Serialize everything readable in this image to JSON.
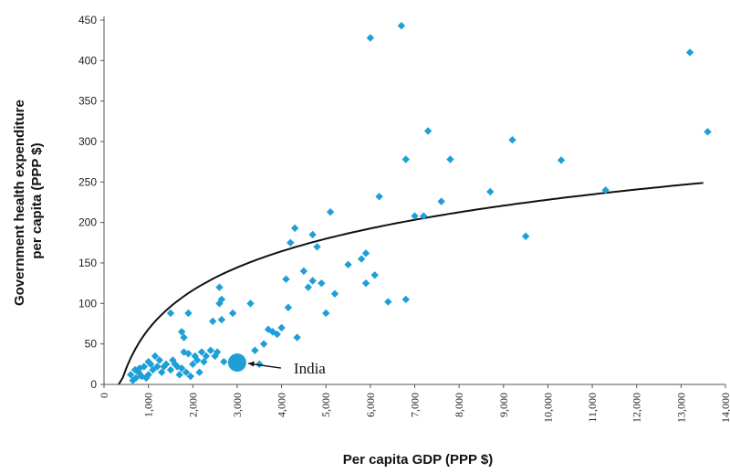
{
  "chart_data": {
    "type": "scatter",
    "xlabel": "Per capita GDP (PPP $)",
    "ylabel_lines": [
      "Government health expenditure",
      "per capita (PPP $)"
    ],
    "xlim": [
      0,
      14000
    ],
    "ylim": [
      0,
      450
    ],
    "xticks": [
      0,
      1000,
      2000,
      3000,
      4000,
      5000,
      6000,
      7000,
      8000,
      9000,
      10000,
      11000,
      12000,
      13000,
      14000
    ],
    "xtick_labels": [
      "0",
      "1,000",
      "2,000",
      "3,000",
      "4,000",
      "5,000",
      "6,000",
      "7,000",
      "8,000",
      "9,000",
      "10,000",
      "11,000",
      "12,000",
      "13,000",
      "14,000"
    ],
    "yticks": [
      0,
      50,
      100,
      150,
      200,
      250,
      300,
      350,
      400,
      450
    ],
    "ytick_labels": [
      "0",
      "50",
      "100",
      "150",
      "200",
      "250",
      "300",
      "350",
      "400",
      "450"
    ],
    "grid": false,
    "marker_color": "#1e9fd8",
    "trend_color": "#111111",
    "trend": {
      "type": "logarithmic",
      "a": 69.5,
      "b": -412,
      "x_range": [
        330,
        13500
      ]
    },
    "highlight": {
      "label": "India",
      "x": 3000,
      "y": 27
    },
    "points": [
      [
        600,
        12
      ],
      [
        650,
        5
      ],
      [
        700,
        18
      ],
      [
        720,
        8
      ],
      [
        780,
        15
      ],
      [
        800,
        20
      ],
      [
        850,
        10
      ],
      [
        900,
        22
      ],
      [
        950,
        8
      ],
      [
        1000,
        12
      ],
      [
        1000,
        28
      ],
      [
        1050,
        25
      ],
      [
        1100,
        18
      ],
      [
        1150,
        35
      ],
      [
        1200,
        22
      ],
      [
        1250,
        30
      ],
      [
        1300,
        15
      ],
      [
        1350,
        22
      ],
      [
        1400,
        25
      ],
      [
        1500,
        88
      ],
      [
        1500,
        18
      ],
      [
        1550,
        30
      ],
      [
        1600,
        25
      ],
      [
        1650,
        22
      ],
      [
        1700,
        12
      ],
      [
        1750,
        65
      ],
      [
        1750,
        20
      ],
      [
        1800,
        40
      ],
      [
        1800,
        58
      ],
      [
        1850,
        15
      ],
      [
        1900,
        88
      ],
      [
        1900,
        38
      ],
      [
        1950,
        10
      ],
      [
        2000,
        25
      ],
      [
        2050,
        35
      ],
      [
        2100,
        30
      ],
      [
        2150,
        15
      ],
      [
        2200,
        40
      ],
      [
        2250,
        28
      ],
      [
        2300,
        35
      ],
      [
        2400,
        42
      ],
      [
        2450,
        78
      ],
      [
        2500,
        35
      ],
      [
        2550,
        40
      ],
      [
        2600,
        120
      ],
      [
        2600,
        100
      ],
      [
        2650,
        105
      ],
      [
        2650,
        80
      ],
      [
        2700,
        28
      ],
      [
        2900,
        88
      ],
      [
        3300,
        100
      ],
      [
        3400,
        42
      ],
      [
        3500,
        25
      ],
      [
        3600,
        50
      ],
      [
        3700,
        68
      ],
      [
        3800,
        65
      ],
      [
        3900,
        62
      ],
      [
        4000,
        70
      ],
      [
        4100,
        130
      ],
      [
        4150,
        95
      ],
      [
        4200,
        175
      ],
      [
        4300,
        193
      ],
      [
        4350,
        58
      ],
      [
        4500,
        140
      ],
      [
        4600,
        120
      ],
      [
        4700,
        185
      ],
      [
        4700,
        128
      ],
      [
        4800,
        170
      ],
      [
        4900,
        125
      ],
      [
        5000,
        88
      ],
      [
        5100,
        213
      ],
      [
        5200,
        112
      ],
      [
        5500,
        148
      ],
      [
        5800,
        155
      ],
      [
        5900,
        162
      ],
      [
        5900,
        125
      ],
      [
        6000,
        428
      ],
      [
        6100,
        135
      ],
      [
        6200,
        232
      ],
      [
        6400,
        102
      ],
      [
        6700,
        443
      ],
      [
        6800,
        278
      ],
      [
        6800,
        105
      ],
      [
        7000,
        208
      ],
      [
        7200,
        208
      ],
      [
        7300,
        313
      ],
      [
        7600,
        226
      ],
      [
        7800,
        278
      ],
      [
        8700,
        238
      ],
      [
        9200,
        302
      ],
      [
        9500,
        183
      ],
      [
        10300,
        277
      ],
      [
        11300,
        240
      ],
      [
        13200,
        410
      ],
      [
        13600,
        312
      ]
    ]
  }
}
